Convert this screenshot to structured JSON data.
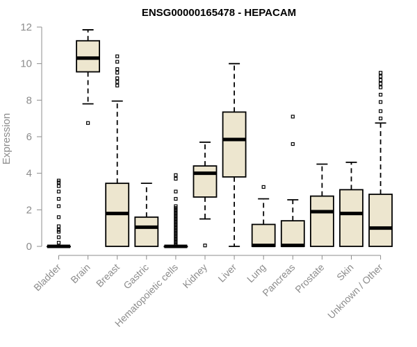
{
  "chart_data": {
    "type": "boxplot",
    "title": "ENSG00000165478 - HEPACAM",
    "xlabel": "",
    "ylabel": "Expression",
    "ylim": [
      0,
      12
    ],
    "yticks": [
      0,
      2,
      4,
      6,
      8,
      10,
      12
    ],
    "box_fill": "#ede6cf",
    "categories": [
      "Bladder",
      "Brain",
      "Breast",
      "Gastric",
      "Hematopoietic cells",
      "Kidney",
      "Liver",
      "Lung",
      "Pancreas",
      "Prostate",
      "Skin",
      "Unknown / Other"
    ],
    "series": [
      {
        "name": "Bladder",
        "q1": 0,
        "median": 0,
        "q3": 0,
        "whisker_low": 0,
        "whisker_high": 0,
        "outliers": [
          0.2,
          0.5,
          0.8,
          0.9,
          1.1,
          1.6,
          2.2,
          2.6,
          3.0,
          3.3,
          3.5,
          3.6
        ]
      },
      {
        "name": "Brain",
        "q1": 9.55,
        "median": 10.3,
        "q3": 11.25,
        "whisker_low": 7.8,
        "whisker_high": 11.85,
        "outliers": [
          6.75
        ]
      },
      {
        "name": "Breast",
        "q1": 0,
        "median": 1.8,
        "q3": 3.45,
        "whisker_low": 0,
        "whisker_high": 7.95,
        "outliers": [
          8.8,
          9.0,
          9.2,
          9.5,
          9.7,
          10.1,
          10.4
        ]
      },
      {
        "name": "Gastric",
        "q1": 0,
        "median": 1.05,
        "q3": 1.6,
        "whisker_low": 0,
        "whisker_high": 3.45,
        "outliers": []
      },
      {
        "name": "Hematopoietic cells",
        "q1": 0,
        "median": 0,
        "q3": 0,
        "whisker_low": 0,
        "whisker_high": 0,
        "outliers": [
          0.1,
          0.2,
          0.3,
          0.4,
          0.5,
          0.6,
          0.7,
          0.8,
          0.9,
          1.0,
          1.1,
          1.2,
          1.3,
          1.4,
          1.5,
          1.6,
          1.7,
          1.8,
          1.9,
          2.0,
          2.1,
          2.2,
          2.6,
          3.0,
          3.7,
          3.9
        ]
      },
      {
        "name": "Kidney",
        "q1": 2.7,
        "median": 4.0,
        "q3": 4.4,
        "whisker_low": 1.5,
        "whisker_high": 5.7,
        "outliers": [
          0.05
        ]
      },
      {
        "name": "Liver",
        "q1": 3.8,
        "median": 5.85,
        "q3": 7.35,
        "whisker_low": 0,
        "whisker_high": 10.0,
        "outliers": []
      },
      {
        "name": "Lung",
        "q1": 0,
        "median": 0.05,
        "q3": 1.2,
        "whisker_low": 0,
        "whisker_high": 2.6,
        "outliers": [
          3.25
        ]
      },
      {
        "name": "Pancreas",
        "q1": 0,
        "median": 0.05,
        "q3": 1.4,
        "whisker_low": 0,
        "whisker_high": 2.55,
        "outliers": [
          5.6,
          7.1
        ]
      },
      {
        "name": "Prostate",
        "q1": 0,
        "median": 1.9,
        "q3": 2.75,
        "whisker_low": 0,
        "whisker_high": 4.5,
        "outliers": []
      },
      {
        "name": "Skin",
        "q1": 0,
        "median": 1.8,
        "q3": 3.1,
        "whisker_low": 0,
        "whisker_high": 4.6,
        "outliers": []
      },
      {
        "name": "Unknown / Other",
        "q1": 0,
        "median": 1.0,
        "q3": 2.85,
        "whisker_low": 0,
        "whisker_high": 6.75,
        "outliers": [
          7.0,
          7.4,
          7.9,
          8.3,
          8.7,
          8.9,
          9.1,
          9.3,
          9.5
        ]
      }
    ]
  }
}
